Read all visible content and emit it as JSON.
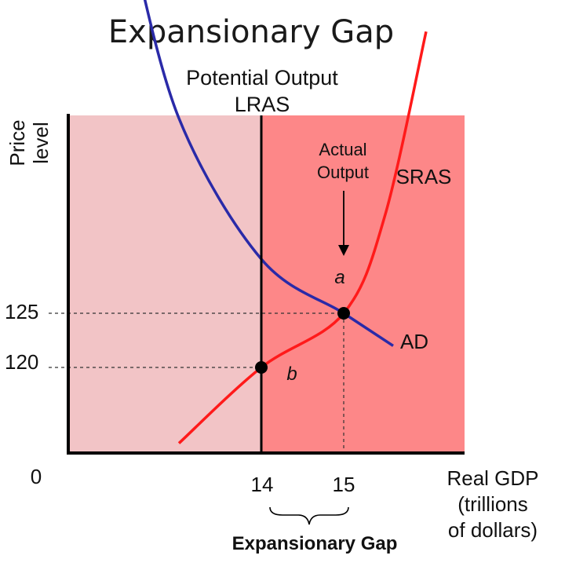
{
  "chart_data": {
    "type": "line",
    "title": "Expansionary Gap",
    "xlabel": [
      "Real GDP",
      "(trillions",
      "of dollars)"
    ],
    "ylabel": [
      "Price",
      "level"
    ],
    "origin_label": "0",
    "x_ticks": [
      "14",
      "15"
    ],
    "y_ticks": [
      "125",
      "120"
    ],
    "series": [
      {
        "name": "AD",
        "color": "#2a2aa8",
        "points": [
          [
            12.4,
            160
          ],
          [
            13.0,
            143
          ],
          [
            14.0,
            130
          ],
          [
            15.0,
            125
          ],
          [
            15.6,
            122
          ]
        ]
      },
      {
        "name": "SRAS",
        "color": "#ff1a1a",
        "points": [
          [
            13.0,
            113
          ],
          [
            14.0,
            120
          ],
          [
            15.0,
            125
          ],
          [
            15.5,
            134
          ],
          [
            16.0,
            151
          ]
        ]
      },
      {
        "name": "Potential Output LRAS",
        "color": "#000000",
        "x": 14
      }
    ],
    "points": [
      {
        "label": "a",
        "x": 15,
        "y": 125
      },
      {
        "label": "b",
        "x": 14,
        "y": 120
      }
    ],
    "annotations": {
      "lras_label": [
        "Potential Output",
        "LRAS"
      ],
      "actual_output": [
        "Actual",
        "Output"
      ],
      "gap_label": "Expansionary Gap"
    },
    "regions": [
      {
        "name": "left-region",
        "color": "#f2c4c6"
      },
      {
        "name": "right-region",
        "color": "#fd8788"
      }
    ]
  }
}
